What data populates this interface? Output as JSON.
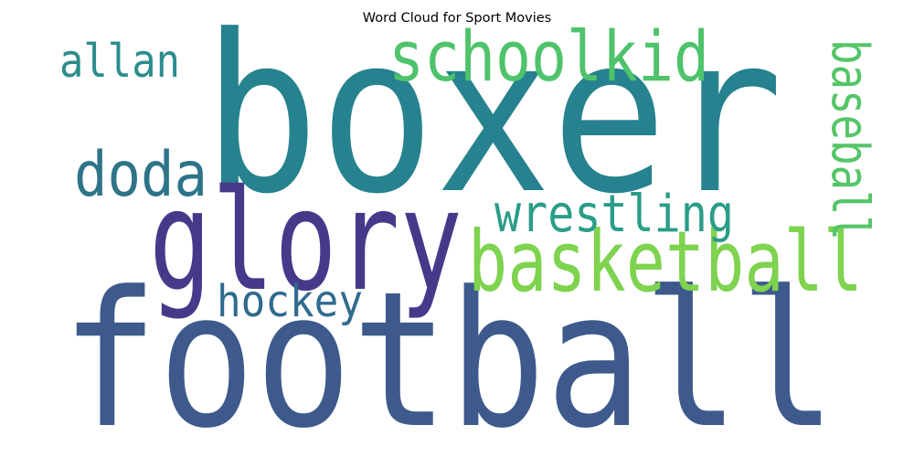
{
  "chart_data": {
    "type": "wordcloud",
    "title": "Word Cloud for Sport Movies",
    "colormap": "viridis",
    "background": "#ffffff",
    "words": [
      {
        "text": "boxer",
        "weight": 1.0,
        "color": "#26828e",
        "orientation": "horizontal"
      },
      {
        "text": "football",
        "weight": 0.95,
        "color": "#3e5a8c",
        "orientation": "horizontal"
      },
      {
        "text": "glory",
        "weight": 0.7,
        "color": "#47398a",
        "orientation": "horizontal"
      },
      {
        "text": "basketball",
        "weight": 0.42,
        "color": "#7ed34f",
        "orientation": "horizontal"
      },
      {
        "text": "schoolkid",
        "weight": 0.35,
        "color": "#4ec36b",
        "orientation": "horizontal"
      },
      {
        "text": "doda",
        "weight": 0.32,
        "color": "#2e7489",
        "orientation": "horizontal"
      },
      {
        "text": "wrestling",
        "weight": 0.26,
        "color": "#2a9d88",
        "orientation": "horizontal"
      },
      {
        "text": "baseball",
        "weight": 0.26,
        "color": "#55c568",
        "orientation": "vertical"
      },
      {
        "text": "allan",
        "weight": 0.22,
        "color": "#2b8d8c",
        "orientation": "horizontal"
      },
      {
        "text": "hockey",
        "weight": 0.22,
        "color": "#306b8e",
        "orientation": "horizontal"
      }
    ]
  }
}
